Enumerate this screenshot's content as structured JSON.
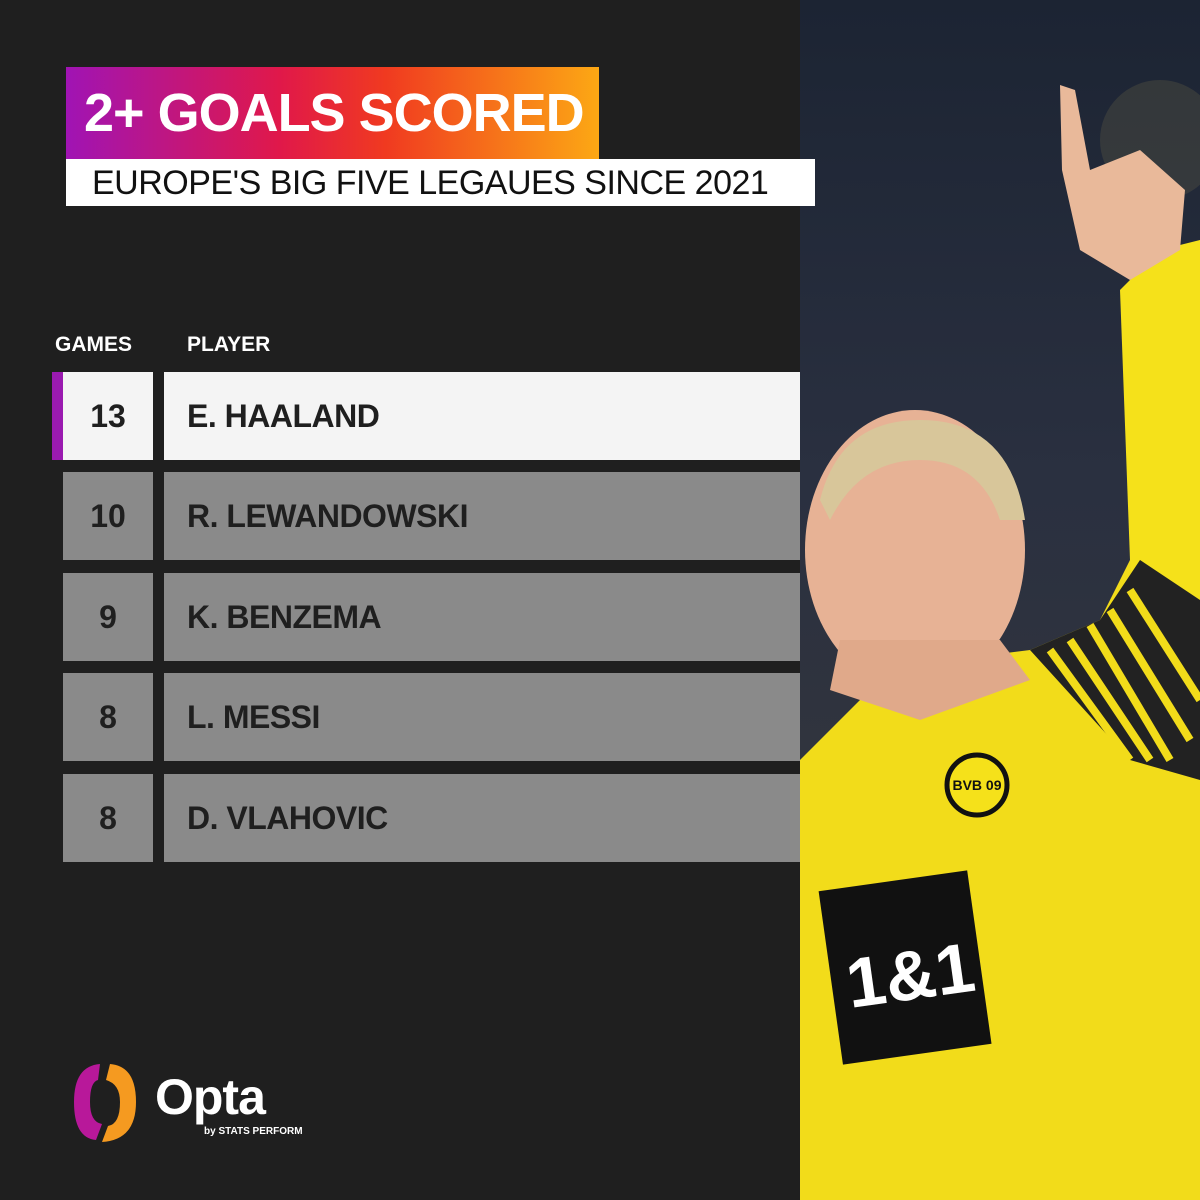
{
  "header": {
    "title": "2+ GOALS SCORED",
    "subtitle": "EUROPE'S  BIG FIVE LEGAUES SINCE 2021"
  },
  "table": {
    "columns": [
      "GAMES",
      "PLAYER"
    ],
    "rows": [
      {
        "games": "13",
        "player": "E. HAALAND"
      },
      {
        "games": "10",
        "player": "R. LEWANDOWSKI"
      },
      {
        "games": "9",
        "player": "K. BENZEMA"
      },
      {
        "games": "8",
        "player": "L. MESSI"
      },
      {
        "games": "8",
        "player": "D. VLAHOVIC"
      }
    ]
  },
  "branding": {
    "logo_text": "Opta",
    "logo_subtext": "by STATS PERFORM"
  },
  "photo": {
    "shirt_sponsor": "1&1",
    "crest_text": "BVB 09"
  },
  "colors": {
    "background": "#1f1f1f",
    "highlight_accent": "#9a1ab0",
    "row_gray": "#8a8a8a",
    "gradient_start": "#a014b4",
    "gradient_end": "#fca814",
    "shirt_yellow": "#f5e11a"
  }
}
